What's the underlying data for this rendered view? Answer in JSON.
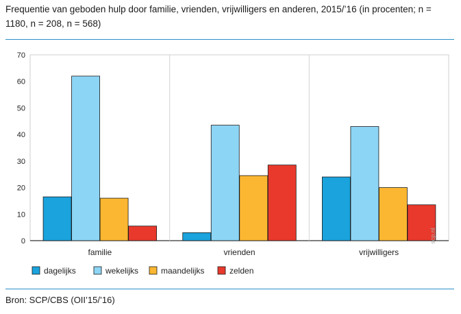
{
  "title": "Frequentie van geboden hulp door familie, vrienden, vrijwilligers en anderen, 2015/’16 (in procenten; n = 1180, n = 208, n = 568)",
  "source": "Bron: SCP/CBS (OII’15/’16)",
  "watermark": "scp.nl",
  "chart_data": {
    "type": "bar",
    "title": "Frequentie van geboden hulp door familie, vrienden, vrijwilligers en anderen, 2015/’16 (in procenten; n = 1180, n = 208, n = 568)",
    "categories": [
      "familie",
      "vrienden",
      "vrijwilligers"
    ],
    "series": [
      {
        "name": "dagelijks",
        "color": "#1aa3dd",
        "values": [
          16.5,
          3,
          24
        ]
      },
      {
        "name": "wekelijks",
        "color": "#8dd5f5",
        "values": [
          62,
          43.5,
          43
        ]
      },
      {
        "name": "maandelijks",
        "color": "#fbb731",
        "values": [
          16,
          24.5,
          20
        ]
      },
      {
        "name": "zelden",
        "color": "#e8392c",
        "values": [
          5.5,
          28.5,
          13.5
        ]
      }
    ],
    "yticks": [
      0,
      10,
      20,
      30,
      40,
      50,
      60,
      70
    ],
    "ylim": [
      0,
      70
    ],
    "xlabel": "",
    "ylabel": "",
    "grid": "vertical category separators",
    "legend_position": "bottom-left"
  }
}
